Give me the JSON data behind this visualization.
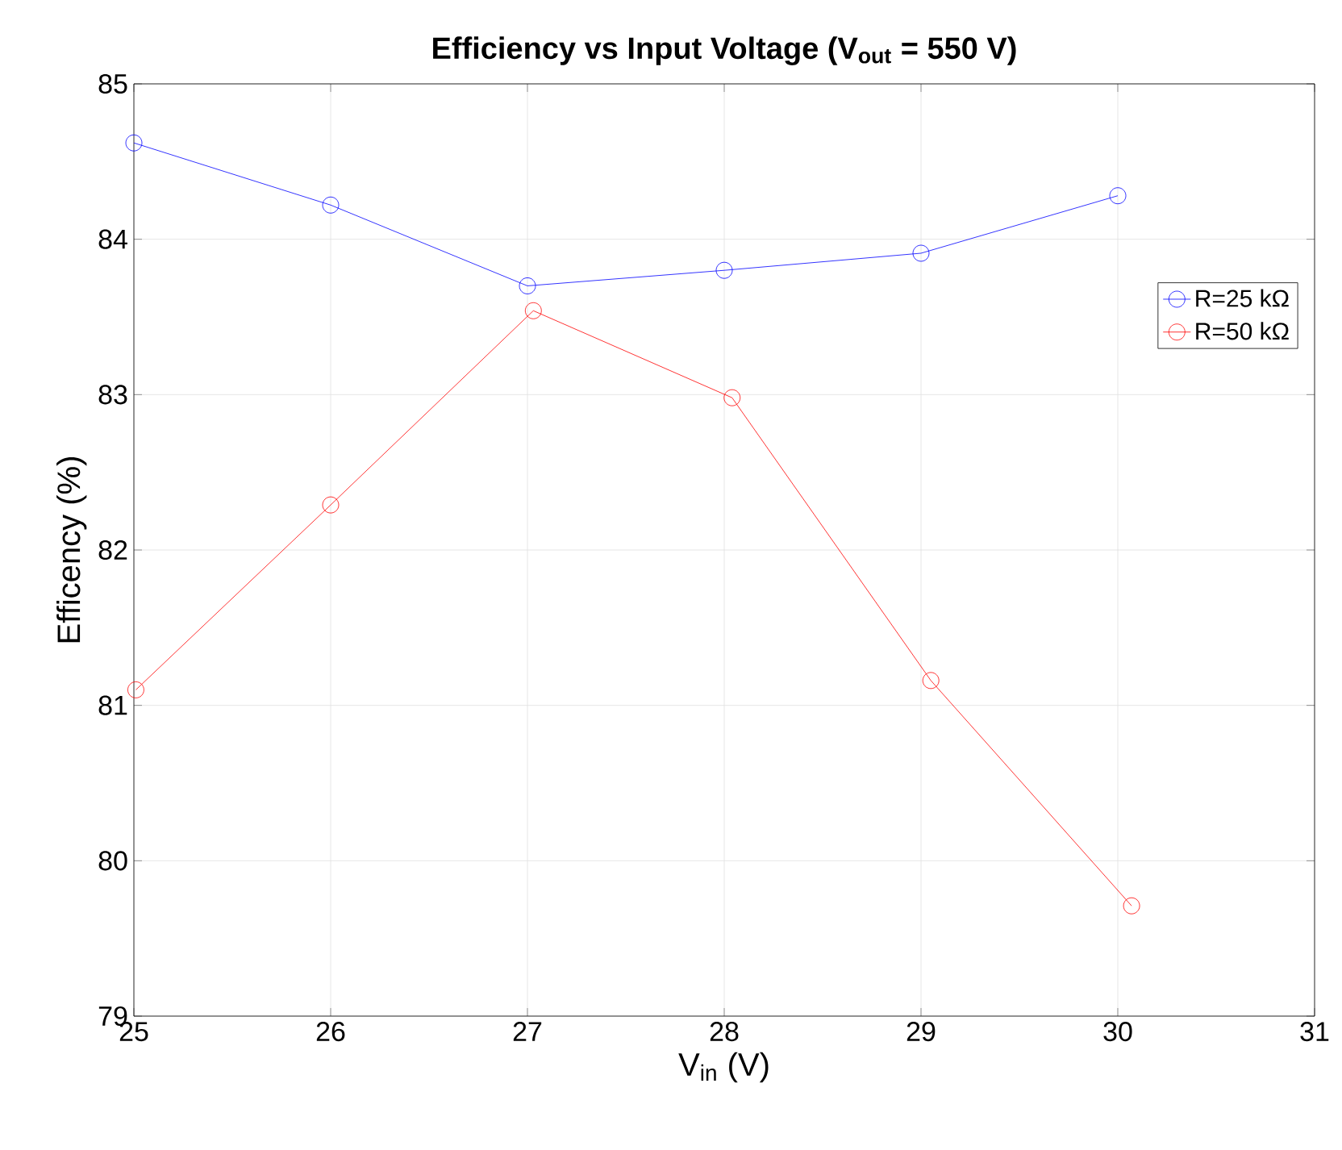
{
  "chart_data": {
    "type": "line",
    "title": "Efficiency vs Input Voltage (V$_{out}$ = 550 V)",
    "xlabel": "V$_{in}$ (V)",
    "ylabel": "Efficency (%)",
    "series": [
      {
        "name": "R=25 kΩ",
        "color": "#0000ff",
        "x": [
          25,
          26,
          27,
          28,
          29,
          30
        ],
        "values": [
          84.62,
          84.22,
          83.7,
          83.8,
          83.91,
          84.28
        ]
      },
      {
        "name": "R=50 kΩ",
        "color": "#ff0000",
        "x": [
          25.01,
          26.0,
          27.03,
          28.04,
          29.05,
          30.07
        ],
        "values": [
          81.1,
          82.29,
          83.54,
          82.98,
          81.16,
          79.71
        ]
      }
    ],
    "xlim": [
      25,
      31
    ],
    "ylim": [
      79,
      85
    ],
    "xticks": [
      25,
      26,
      27,
      28,
      29,
      30,
      31
    ],
    "yticks": [
      79,
      80,
      81,
      82,
      83,
      84,
      85
    ],
    "grid": true,
    "legend": "top right",
    "marker": "circle",
    "line_style": "solid"
  }
}
